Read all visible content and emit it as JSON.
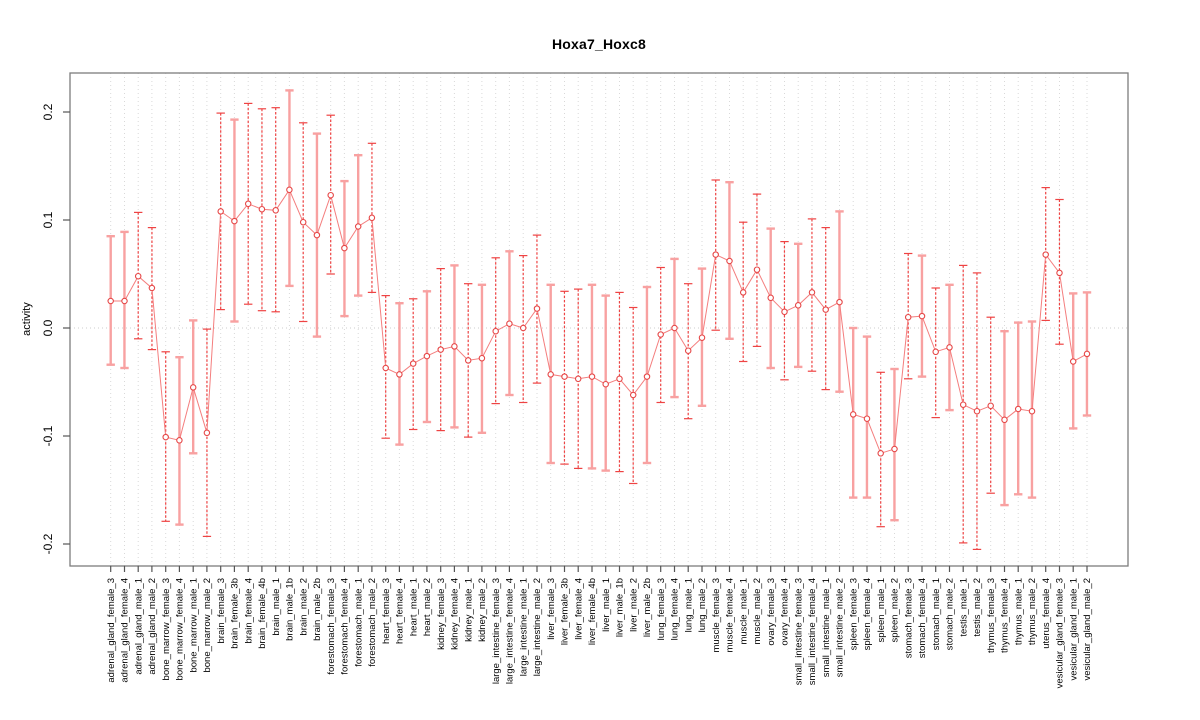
{
  "title": "Hoxa7_Hoxc8",
  "chart_data": {
    "type": "scatter",
    "subtype": "points-with-confidence-intervals",
    "title": "Hoxa7_Hoxc8",
    "xlabel": "",
    "ylabel": "activity",
    "ylim": [
      -0.222,
      0.236
    ],
    "yticks": [
      -0.2,
      -0.1,
      0.0,
      0.1,
      0.2
    ],
    "ytick_labels": [
      "-0.2",
      "-0.1",
      "0.0",
      "0.1",
      "0.2"
    ],
    "grid": "dotted vertical line at every category; dotted horizontal line at y=0",
    "legend": "none",
    "point_marker": "open-circle",
    "categories": [
      "adrenal_gland_female_3",
      "adrenal_gland_female_4",
      "adrenal_gland_male_1",
      "adrenal_gland_male_2",
      "bone_marrow_female_3",
      "bone_marrow_female_4",
      "bone_marrow_male_1",
      "bone_marrow_male_2",
      "brain_female_3",
      "brain_female_3b",
      "brain_female_4",
      "brain_female_4b",
      "brain_male_1",
      "brain_male_1b",
      "brain_male_2",
      "brain_male_2b",
      "forestomach_female_3",
      "forestomach_female_4",
      "forestomach_male_1",
      "forestomach_male_2",
      "heart_female_3",
      "heart_female_4",
      "heart_male_1",
      "heart_male_2",
      "kidney_female_3",
      "kidney_female_4",
      "kidney_male_1",
      "kidney_male_2",
      "large_intestine_female_3",
      "large_intestine_female_4",
      "large_intestine_male_1",
      "large_intestine_male_2",
      "liver_female_3",
      "liver_female_3b",
      "liver_female_4",
      "liver_female_4b",
      "liver_male_1",
      "liver_male_1b",
      "liver_male_2",
      "liver_male_2b",
      "lung_female_3",
      "lung_female_4",
      "lung_male_1",
      "lung_male_2",
      "muscle_female_3",
      "muscle_female_4",
      "muscle_male_1",
      "muscle_male_2",
      "ovary_female_3",
      "ovary_female_4",
      "small_intestine_female_3",
      "small_intestine_female_4",
      "small_intestine_male_1",
      "small_intestine_male_2",
      "spleen_female_3",
      "spleen_female_4",
      "spleen_male_1",
      "spleen_male_2",
      "stomach_female_3",
      "stomach_female_4",
      "stomach_male_1",
      "stomach_male_2",
      "testis_male_1",
      "testis_male_2",
      "thymus_female_3",
      "thymus_female_4",
      "thymus_male_1",
      "thymus_male_2",
      "uterus_female_4",
      "vesicular_gland_female_3",
      "vesicular_gland_male_1",
      "vesicular_gland_male_2"
    ],
    "values": [
      0.025,
      0.025,
      0.048,
      0.037,
      -0.101,
      -0.104,
      -0.055,
      -0.097,
      0.108,
      0.099,
      0.115,
      0.11,
      0.109,
      0.128,
      0.098,
      0.086,
      0.123,
      0.074,
      0.094,
      0.102,
      -0.037,
      -0.043,
      -0.033,
      -0.026,
      -0.02,
      -0.017,
      -0.03,
      -0.028,
      -0.003,
      0.004,
      0.0,
      0.018,
      -0.043,
      -0.045,
      -0.047,
      -0.045,
      -0.052,
      -0.047,
      -0.062,
      -0.045,
      -0.006,
      0.0,
      -0.021,
      -0.009,
      0.068,
      0.062,
      0.033,
      0.054,
      0.028,
      0.015,
      0.021,
      0.033,
      0.017,
      0.024,
      -0.08,
      -0.084,
      -0.116,
      -0.112,
      0.01,
      0.011,
      -0.022,
      -0.018,
      -0.071,
      -0.077,
      -0.072,
      -0.085,
      -0.075,
      -0.077,
      0.068,
      0.051,
      -0.031,
      -0.024
    ],
    "ci_high": [
      0.085,
      0.089,
      0.107,
      0.093,
      -0.022,
      -0.027,
      0.007,
      -0.001,
      0.199,
      0.193,
      0.208,
      0.203,
      0.204,
      0.22,
      0.19,
      0.18,
      0.197,
      0.136,
      0.16,
      0.171,
      0.03,
      0.023,
      0.027,
      0.034,
      0.055,
      0.058,
      0.041,
      0.04,
      0.065,
      0.071,
      0.067,
      0.086,
      0.04,
      0.034,
      0.036,
      0.04,
      0.03,
      0.033,
      0.019,
      0.038,
      0.056,
      0.064,
      0.041,
      0.055,
      0.137,
      0.135,
      0.098,
      0.124,
      0.092,
      0.08,
      0.078,
      0.101,
      0.093,
      0.108,
      0.0,
      -0.008,
      -0.041,
      -0.038,
      0.069,
      0.067,
      0.037,
      0.04,
      0.058,
      0.051,
      0.01,
      -0.003,
      0.005,
      0.006,
      0.13,
      0.119,
      0.032,
      0.033
    ],
    "ci_low": [
      -0.034,
      -0.037,
      -0.01,
      -0.02,
      -0.179,
      -0.182,
      -0.116,
      -0.193,
      0.017,
      0.006,
      0.022,
      0.016,
      0.015,
      0.039,
      0.006,
      -0.008,
      0.05,
      0.011,
      0.03,
      0.033,
      -0.102,
      -0.108,
      -0.094,
      -0.087,
      -0.095,
      -0.092,
      -0.101,
      -0.097,
      -0.07,
      -0.062,
      -0.069,
      -0.051,
      -0.125,
      -0.126,
      -0.13,
      -0.13,
      -0.132,
      -0.133,
      -0.144,
      -0.125,
      -0.069,
      -0.064,
      -0.084,
      -0.072,
      -0.002,
      -0.01,
      -0.031,
      -0.017,
      -0.037,
      -0.048,
      -0.036,
      -0.04,
      -0.057,
      -0.059,
      -0.157,
      -0.157,
      -0.184,
      -0.178,
      -0.047,
      -0.045,
      -0.083,
      -0.076,
      -0.199,
      -0.205,
      -0.153,
      -0.164,
      -0.154,
      -0.157,
      0.007,
      -0.015,
      -0.093,
      -0.081
    ],
    "bar_styles": [
      "solid",
      "solid",
      "dashed",
      "dashed",
      "dashed",
      "solid",
      "solid",
      "dashed",
      "dashed",
      "solid",
      "dashed",
      "dashed",
      "dashed",
      "solid",
      "dashed",
      "solid",
      "dashed",
      "solid",
      "solid",
      "dashed",
      "dashed",
      "solid",
      "dashed",
      "solid",
      "dashed",
      "solid",
      "dashed",
      "solid",
      "dashed",
      "solid",
      "dashed",
      "dashed",
      "solid",
      "dashed",
      "dashed",
      "solid",
      "solid",
      "dashed",
      "dashed",
      "solid",
      "dashed",
      "solid",
      "dashed",
      "solid",
      "dashed",
      "solid",
      "dashed",
      "dashed",
      "solid",
      "dashed",
      "solid",
      "dashed",
      "dashed",
      "solid",
      "solid",
      "solid",
      "dashed",
      "solid",
      "dashed",
      "solid",
      "dashed",
      "solid",
      "dashed",
      "dashed",
      "dashed",
      "solid",
      "solid",
      "solid",
      "dashed",
      "dashed",
      "solid",
      "solid"
    ],
    "colors": {
      "bar_solid": "#f8a1a1",
      "bar_dashed": "#ee4343",
      "series_line": "#f47e7e",
      "point_stroke": "#e64848",
      "gridline": "#d9d9d9",
      "zero_line": "#cccccc",
      "plot_border": "#7d7d7d",
      "tick": "#555555",
      "text": "#000000"
    }
  }
}
